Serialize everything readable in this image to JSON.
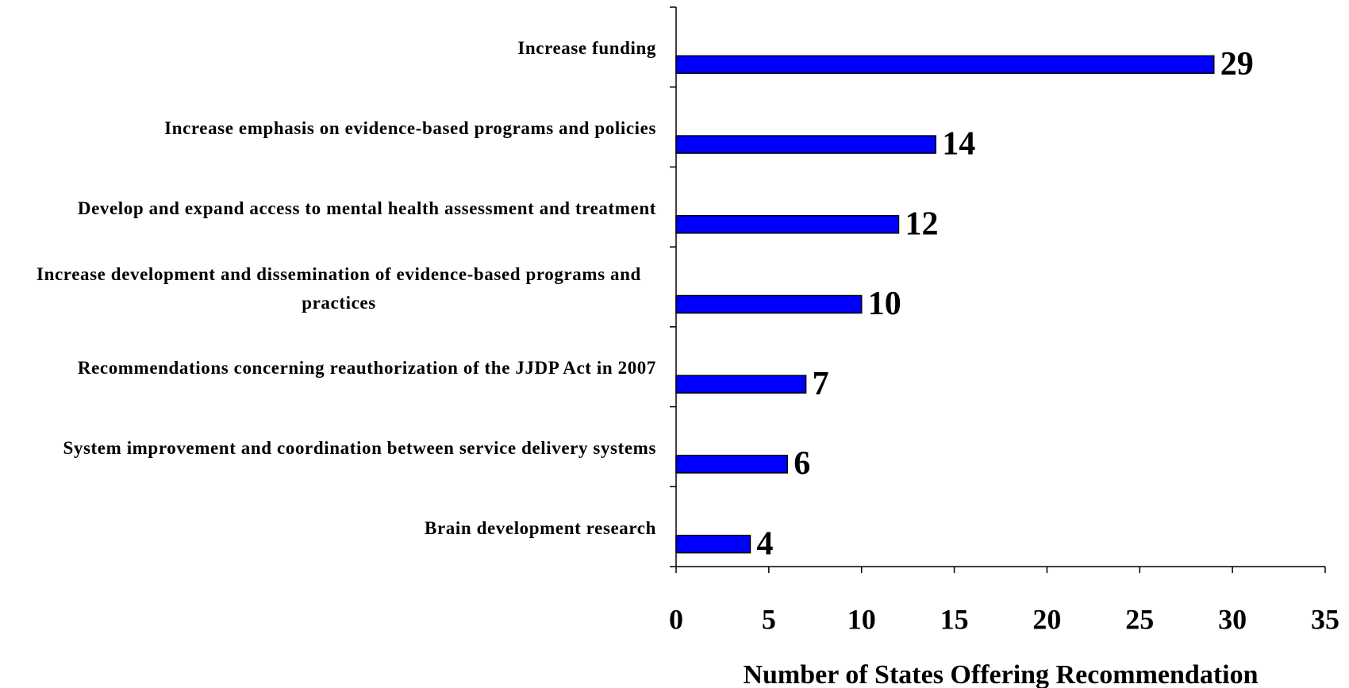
{
  "chart_data": {
    "type": "barh",
    "categories": [
      "Increase funding",
      "Increase emphasis on evidence-based programs and policies",
      "Develop and expand access to mental health assessment and treatment",
      "Increase development and dissemination of evidence-based programs and practices",
      "Recommendations concerning reauthorization of the JJDP Act in 2007",
      "System improvement and coordination between service delivery systems",
      "Brain development research"
    ],
    "values": [
      29,
      14,
      12,
      10,
      7,
      6,
      4
    ],
    "color": "#0000ff",
    "xlabel": "Number of States Offering Recommendation",
    "xlim": [
      0,
      35
    ],
    "xticks": [
      0,
      5,
      10,
      15,
      20,
      25,
      30,
      35
    ]
  }
}
